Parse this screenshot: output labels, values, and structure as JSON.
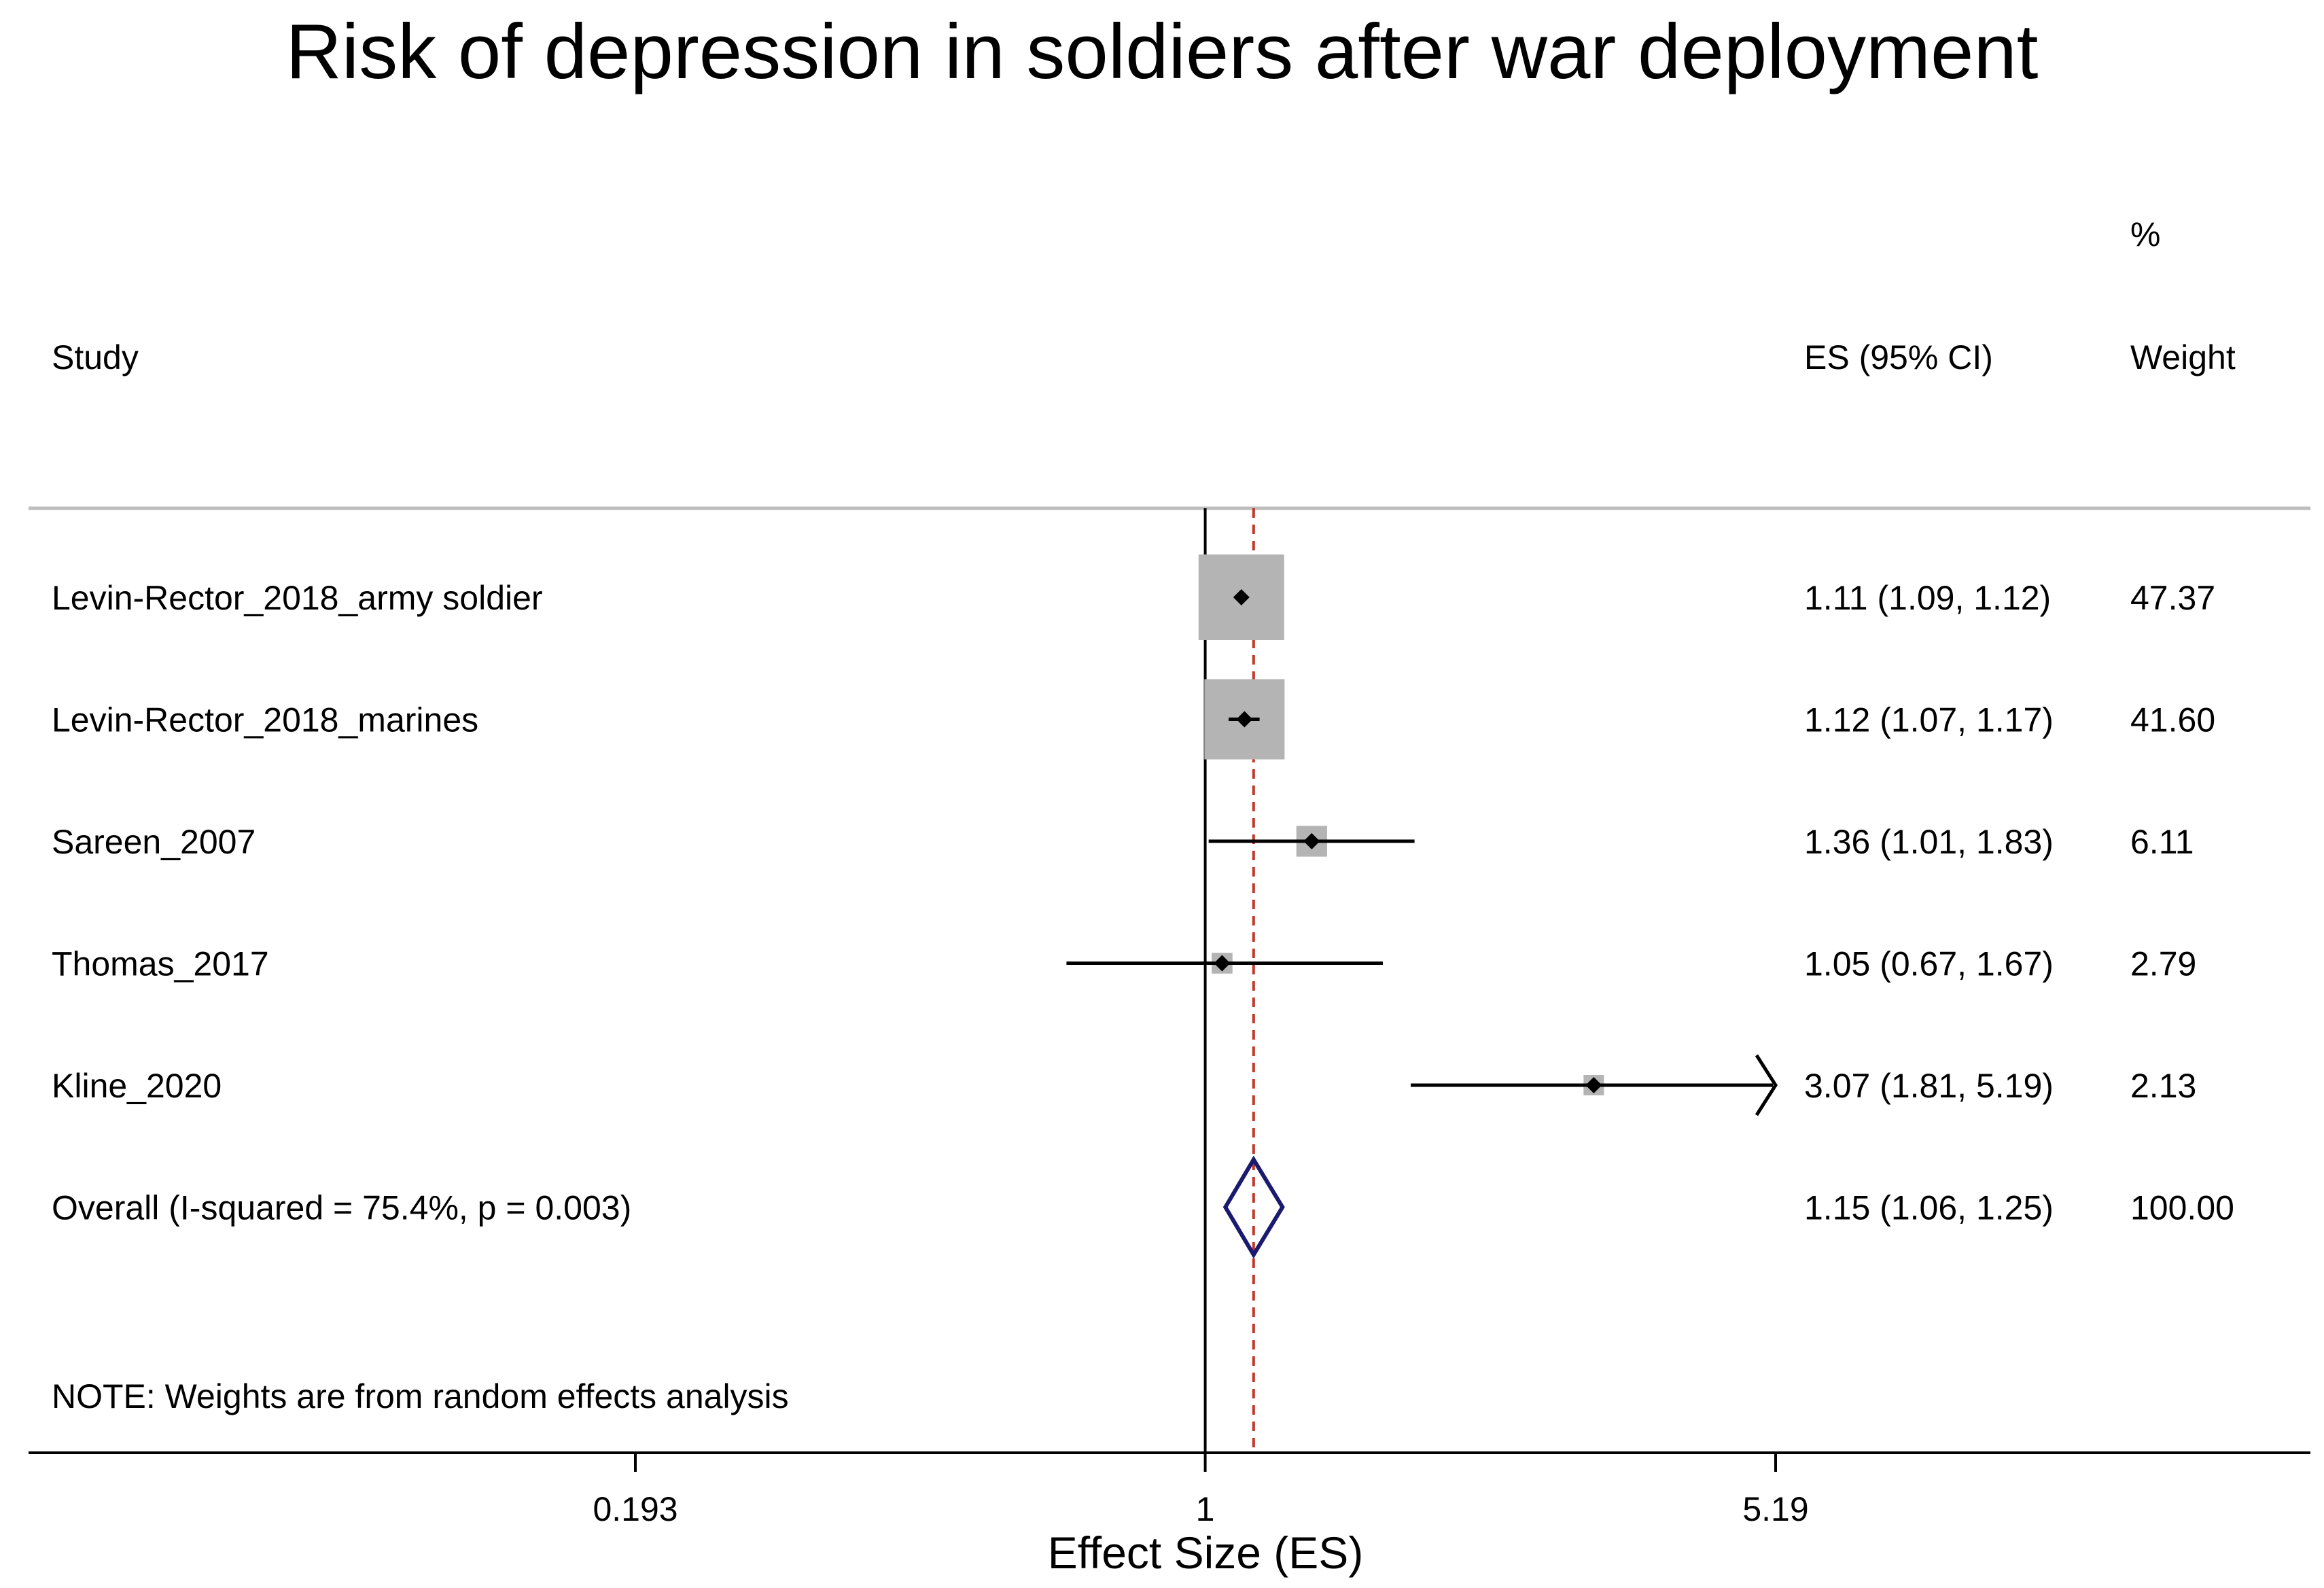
{
  "chart_data": {
    "type": "forest",
    "title": "Risk of depression in soldiers after war deployment",
    "xlabel": "Effect Size (ES)",
    "scale": "log",
    "x_ticks": [
      0.193,
      1,
      5.19
    ],
    "x_tick_labels": [
      "0.193",
      "1",
      "5.19"
    ],
    "xlim": [
      0.193,
      5.19
    ],
    "null_line": 1,
    "overall_line": 1.15,
    "columns": {
      "study": "Study",
      "es": "ES (95% CI)",
      "weight_top": "%",
      "weight": "Weight"
    },
    "studies": [
      {
        "name": "Levin-Rector_2018_army soldier",
        "es": 1.11,
        "lo": 1.09,
        "hi": 1.12,
        "weight": 47.37,
        "es_text": "1.11 (1.09, 1.12)",
        "weight_text": "47.37"
      },
      {
        "name": "Levin-Rector_2018_marines",
        "es": 1.12,
        "lo": 1.07,
        "hi": 1.17,
        "weight": 41.6,
        "es_text": "1.12 (1.07, 1.17)",
        "weight_text": "41.60"
      },
      {
        "name": "Sareen_2007",
        "es": 1.36,
        "lo": 1.01,
        "hi": 1.83,
        "weight": 6.11,
        "es_text": "1.36 (1.01, 1.83)",
        "weight_text": "6.11"
      },
      {
        "name": "Thomas_2017",
        "es": 1.05,
        "lo": 0.67,
        "hi": 1.67,
        "weight": 2.79,
        "es_text": "1.05 (0.67, 1.67)",
        "weight_text": "2.79"
      },
      {
        "name": "Kline_2020",
        "es": 3.07,
        "lo": 1.81,
        "hi": 5.19,
        "weight": 2.13,
        "es_text": "3.07 (1.81, 5.19)",
        "weight_text": "2.13"
      }
    ],
    "overall": {
      "name": "Overall  (I-squared = 75.4%, p = 0.003)",
      "es": 1.15,
      "lo": 1.06,
      "hi": 1.25,
      "es_text": "1.15 (1.06, 1.25)",
      "weight_text": "100.00"
    },
    "note": "NOTE: Weights are from random effects analysis",
    "colors": {
      "box": "#b4b4b4",
      "point": "#000000",
      "ci": "#000000",
      "diamond": "#1a1a6e",
      "overall_line": "#c0392b",
      "null_line": "#000000",
      "separator": "#bdbdbd"
    }
  }
}
